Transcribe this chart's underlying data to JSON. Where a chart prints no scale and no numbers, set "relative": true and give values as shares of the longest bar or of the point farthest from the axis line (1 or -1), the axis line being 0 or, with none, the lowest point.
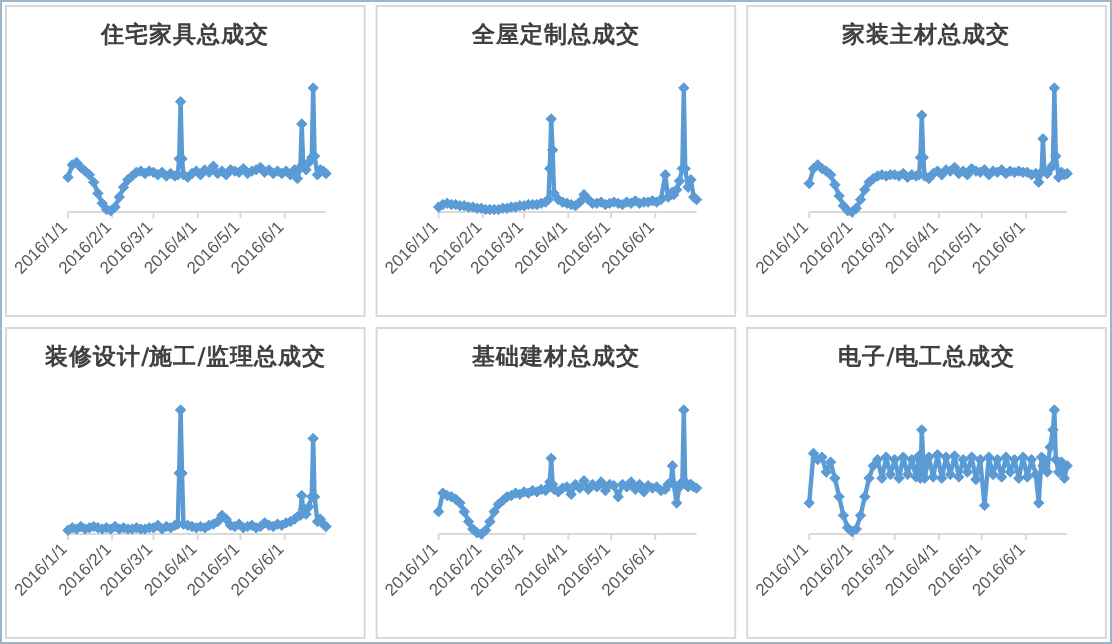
{
  "chart_data": [
    {
      "type": "line",
      "title": "住宅家具总成交",
      "color": "#5b9bd5",
      "marker": "diamond",
      "relative": true,
      "tick_labels": "x",
      "xlim": [
        "2016-01-01",
        "2016-06-30"
      ],
      "xticks": [
        {
          "value": "2016-01-01",
          "label": "2016/1/1"
        },
        {
          "value": "2016-02-01",
          "label": "2016/2/1"
        },
        {
          "value": "2016-03-01",
          "label": "2016/3/1"
        },
        {
          "value": "2016-04-01",
          "label": "2016/4/1"
        },
        {
          "value": "2016-05-01",
          "label": "2016/5/1"
        },
        {
          "value": "2016-06-01",
          "label": "2016/6/1"
        }
      ],
      "x": [
        "2016-01-01",
        "2016-01-04",
        "2016-01-07",
        "2016-01-10",
        "2016-01-13",
        "2016-01-16",
        "2016-01-19",
        "2016-01-22",
        "2016-01-25",
        "2016-01-28",
        "2016-01-31",
        "2016-02-03",
        "2016-02-06",
        "2016-02-09",
        "2016-02-12",
        "2016-02-15",
        "2016-02-18",
        "2016-02-21",
        "2016-02-24",
        "2016-02-27",
        "2016-03-01",
        "2016-03-04",
        "2016-03-07",
        "2016-03-10",
        "2016-03-13",
        "2016-03-16",
        "2016-03-18",
        "2016-03-19",
        "2016-03-20",
        "2016-03-21",
        "2016-03-22",
        "2016-03-25",
        "2016-03-28",
        "2016-03-31",
        "2016-04-03",
        "2016-04-06",
        "2016-04-09",
        "2016-04-12",
        "2016-04-15",
        "2016-04-18",
        "2016-04-21",
        "2016-04-24",
        "2016-04-27",
        "2016-04-30",
        "2016-05-03",
        "2016-05-06",
        "2016-05-09",
        "2016-05-12",
        "2016-05-15",
        "2016-05-18",
        "2016-05-21",
        "2016-05-24",
        "2016-05-27",
        "2016-05-30",
        "2016-06-02",
        "2016-06-05",
        "2016-06-08",
        "2016-06-10",
        "2016-06-12",
        "2016-06-13",
        "2016-06-14",
        "2016-06-16",
        "2016-06-18",
        "2016-06-20",
        "2016-06-21",
        "2016-06-22",
        "2016-06-24",
        "2016-06-26",
        "2016-06-28",
        "2016-06-30"
      ],
      "values": [
        0.28,
        0.38,
        0.4,
        0.36,
        0.33,
        0.3,
        0.24,
        0.15,
        0.07,
        0.02,
        0.01,
        0.04,
        0.12,
        0.2,
        0.26,
        0.29,
        0.32,
        0.33,
        0.31,
        0.33,
        0.32,
        0.3,
        0.32,
        0.29,
        0.31,
        0.29,
        0.3,
        0.43,
        0.89,
        0.43,
        0.3,
        0.28,
        0.31,
        0.33,
        0.3,
        0.34,
        0.32,
        0.37,
        0.31,
        0.33,
        0.3,
        0.34,
        0.33,
        0.32,
        0.35,
        0.31,
        0.33,
        0.34,
        0.36,
        0.32,
        0.34,
        0.31,
        0.33,
        0.31,
        0.33,
        0.3,
        0.34,
        0.27,
        0.36,
        0.71,
        0.38,
        0.34,
        0.4,
        0.44,
        1,
        0.45,
        0.3,
        0.34,
        0.33,
        0.31
      ]
    },
    {
      "type": "line",
      "title": "全屋定制总成交",
      "color": "#5b9bd5",
      "marker": "diamond",
      "relative": true,
      "tick_labels": "x",
      "xlim": [
        "2016-01-01",
        "2016-06-30"
      ],
      "xticks": [
        {
          "value": "2016-01-01",
          "label": "2016/1/1"
        },
        {
          "value": "2016-02-01",
          "label": "2016/2/1"
        },
        {
          "value": "2016-03-01",
          "label": "2016/3/1"
        },
        {
          "value": "2016-04-01",
          "label": "2016/4/1"
        },
        {
          "value": "2016-05-01",
          "label": "2016/5/1"
        },
        {
          "value": "2016-06-01",
          "label": "2016/6/1"
        }
      ],
      "x": [
        "2016-01-01",
        "2016-01-04",
        "2016-01-07",
        "2016-01-10",
        "2016-01-13",
        "2016-01-16",
        "2016-01-19",
        "2016-01-22",
        "2016-01-25",
        "2016-01-28",
        "2016-01-31",
        "2016-02-03",
        "2016-02-06",
        "2016-02-09",
        "2016-02-12",
        "2016-02-15",
        "2016-02-18",
        "2016-02-21",
        "2016-02-24",
        "2016-02-27",
        "2016-03-01",
        "2016-03-04",
        "2016-03-07",
        "2016-03-10",
        "2016-03-13",
        "2016-03-16",
        "2016-03-18",
        "2016-03-19",
        "2016-03-20",
        "2016-03-21",
        "2016-03-22",
        "2016-03-25",
        "2016-03-28",
        "2016-03-31",
        "2016-04-03",
        "2016-04-06",
        "2016-04-09",
        "2016-04-12",
        "2016-04-15",
        "2016-04-18",
        "2016-04-21",
        "2016-04-24",
        "2016-04-27",
        "2016-04-30",
        "2016-05-03",
        "2016-05-06",
        "2016-05-09",
        "2016-05-12",
        "2016-05-15",
        "2016-05-18",
        "2016-05-21",
        "2016-05-24",
        "2016-05-27",
        "2016-05-30",
        "2016-06-02",
        "2016-06-05",
        "2016-06-08",
        "2016-06-10",
        "2016-06-12",
        "2016-06-13",
        "2016-06-14",
        "2016-06-16",
        "2016-06-18",
        "2016-06-20",
        "2016-06-21",
        "2016-06-22",
        "2016-06-24",
        "2016-06-26",
        "2016-06-28",
        "2016-06-30"
      ],
      "values": [
        0.04,
        0.06,
        0.07,
        0.06,
        0.06,
        0.05,
        0.05,
        0.04,
        0.04,
        0.03,
        0.03,
        0.02,
        0.02,
        0.02,
        0.02,
        0.03,
        0.03,
        0.04,
        0.04,
        0.05,
        0.05,
        0.06,
        0.06,
        0.06,
        0.07,
        0.08,
        0.1,
        0.35,
        0.75,
        0.5,
        0.15,
        0.1,
        0.08,
        0.07,
        0.06,
        0.05,
        0.08,
        0.14,
        0.1,
        0.07,
        0.07,
        0.08,
        0.06,
        0.07,
        0.08,
        0.07,
        0.06,
        0.08,
        0.07,
        0.09,
        0.07,
        0.08,
        0.08,
        0.09,
        0.08,
        0.1,
        0.3,
        0.12,
        0.14,
        0.16,
        0.14,
        0.18,
        0.25,
        0.35,
        1,
        0.35,
        0.2,
        0.26,
        0.12,
        0.1
      ]
    },
    {
      "type": "line",
      "title": "家装主材总成交",
      "color": "#5b9bd5",
      "marker": "diamond",
      "relative": true,
      "tick_labels": "x",
      "xlim": [
        "2016-01-01",
        "2016-06-30"
      ],
      "xticks": [
        {
          "value": "2016-01-01",
          "label": "2016/1/1"
        },
        {
          "value": "2016-02-01",
          "label": "2016/2/1"
        },
        {
          "value": "2016-03-01",
          "label": "2016/3/1"
        },
        {
          "value": "2016-04-01",
          "label": "2016/4/1"
        },
        {
          "value": "2016-05-01",
          "label": "2016/5/1"
        },
        {
          "value": "2016-06-01",
          "label": "2016/6/1"
        }
      ],
      "x": [
        "2016-01-01",
        "2016-01-04",
        "2016-01-07",
        "2016-01-10",
        "2016-01-13",
        "2016-01-16",
        "2016-01-19",
        "2016-01-22",
        "2016-01-25",
        "2016-01-28",
        "2016-01-31",
        "2016-02-03",
        "2016-02-06",
        "2016-02-09",
        "2016-02-12",
        "2016-02-15",
        "2016-02-18",
        "2016-02-21",
        "2016-02-24",
        "2016-02-27",
        "2016-03-01",
        "2016-03-04",
        "2016-03-07",
        "2016-03-10",
        "2016-03-13",
        "2016-03-16",
        "2016-03-18",
        "2016-03-19",
        "2016-03-20",
        "2016-03-21",
        "2016-03-22",
        "2016-03-25",
        "2016-03-28",
        "2016-03-31",
        "2016-04-03",
        "2016-04-06",
        "2016-04-09",
        "2016-04-12",
        "2016-04-15",
        "2016-04-18",
        "2016-04-21",
        "2016-04-24",
        "2016-04-27",
        "2016-04-30",
        "2016-05-03",
        "2016-05-06",
        "2016-05-09",
        "2016-05-12",
        "2016-05-15",
        "2016-05-18",
        "2016-05-21",
        "2016-05-24",
        "2016-05-27",
        "2016-05-30",
        "2016-06-02",
        "2016-06-05",
        "2016-06-08",
        "2016-06-10",
        "2016-06-12",
        "2016-06-13",
        "2016-06-14",
        "2016-06-16",
        "2016-06-18",
        "2016-06-20",
        "2016-06-21",
        "2016-06-22",
        "2016-06-24",
        "2016-06-26",
        "2016-06-28",
        "2016-06-30"
      ],
      "values": [
        0.23,
        0.35,
        0.38,
        0.35,
        0.33,
        0.3,
        0.22,
        0.13,
        0.05,
        0.01,
        0,
        0.03,
        0.1,
        0.18,
        0.24,
        0.27,
        0.29,
        0.3,
        0.29,
        0.3,
        0.3,
        0.29,
        0.31,
        0.28,
        0.3,
        0.29,
        0.3,
        0.44,
        0.78,
        0.44,
        0.29,
        0.27,
        0.31,
        0.33,
        0.3,
        0.34,
        0.33,
        0.36,
        0.31,
        0.33,
        0.3,
        0.35,
        0.33,
        0.32,
        0.34,
        0.3,
        0.33,
        0.32,
        0.34,
        0.31,
        0.33,
        0.32,
        0.33,
        0.32,
        0.32,
        0.3,
        0.31,
        0.24,
        0.32,
        0.59,
        0.33,
        0.31,
        0.35,
        0.38,
        1,
        0.45,
        0.28,
        0.32,
        0.3,
        0.31
      ]
    },
    {
      "type": "line",
      "title": "装修设计/施工/监理总成交",
      "color": "#5b9bd5",
      "marker": "diamond",
      "relative": true,
      "tick_labels": "x",
      "xlim": [
        "2016-01-01",
        "2016-06-30"
      ],
      "xticks": [
        {
          "value": "2016-01-01",
          "label": "2016/1/1"
        },
        {
          "value": "2016-02-01",
          "label": "2016/2/1"
        },
        {
          "value": "2016-03-01",
          "label": "2016/3/1"
        },
        {
          "value": "2016-04-01",
          "label": "2016/4/1"
        },
        {
          "value": "2016-05-01",
          "label": "2016/5/1"
        },
        {
          "value": "2016-06-01",
          "label": "2016/6/1"
        }
      ],
      "x": [
        "2016-01-01",
        "2016-01-04",
        "2016-01-07",
        "2016-01-10",
        "2016-01-13",
        "2016-01-16",
        "2016-01-19",
        "2016-01-22",
        "2016-01-25",
        "2016-01-28",
        "2016-01-31",
        "2016-02-03",
        "2016-02-06",
        "2016-02-09",
        "2016-02-12",
        "2016-02-15",
        "2016-02-18",
        "2016-02-21",
        "2016-02-24",
        "2016-02-27",
        "2016-03-01",
        "2016-03-04",
        "2016-03-07",
        "2016-03-10",
        "2016-03-13",
        "2016-03-16",
        "2016-03-18",
        "2016-03-19",
        "2016-03-20",
        "2016-03-21",
        "2016-03-22",
        "2016-03-25",
        "2016-03-28",
        "2016-03-31",
        "2016-04-03",
        "2016-04-06",
        "2016-04-09",
        "2016-04-12",
        "2016-04-15",
        "2016-04-18",
        "2016-04-21",
        "2016-04-24",
        "2016-04-27",
        "2016-04-30",
        "2016-05-03",
        "2016-05-06",
        "2016-05-09",
        "2016-05-12",
        "2016-05-15",
        "2016-05-18",
        "2016-05-21",
        "2016-05-24",
        "2016-05-27",
        "2016-05-30",
        "2016-06-02",
        "2016-06-05",
        "2016-06-08",
        "2016-06-10",
        "2016-06-12",
        "2016-06-13",
        "2016-06-14",
        "2016-06-16",
        "2016-06-18",
        "2016-06-20",
        "2016-06-21",
        "2016-06-22",
        "2016-06-24",
        "2016-06-26",
        "2016-06-28",
        "2016-06-30"
      ],
      "values": [
        0.03,
        0.05,
        0.04,
        0.06,
        0.04,
        0.05,
        0.06,
        0.05,
        0.04,
        0.05,
        0.04,
        0.06,
        0.04,
        0.05,
        0.04,
        0.04,
        0.05,
        0.04,
        0.04,
        0.05,
        0.05,
        0.07,
        0.04,
        0.06,
        0.05,
        0.07,
        0.08,
        0.49,
        1,
        0.49,
        0.08,
        0.07,
        0.06,
        0.05,
        0.06,
        0.05,
        0.07,
        0.08,
        0.1,
        0.15,
        0.12,
        0.07,
        0.06,
        0.08,
        0.05,
        0.06,
        0.07,
        0.05,
        0.06,
        0.09,
        0.07,
        0.06,
        0.08,
        0.07,
        0.09,
        0.1,
        0.12,
        0.14,
        0.15,
        0.31,
        0.2,
        0.16,
        0.22,
        0.3,
        0.77,
        0.3,
        0.1,
        0.12,
        0.08,
        0.06
      ]
    },
    {
      "type": "line",
      "title": "基础建材总成交",
      "color": "#5b9bd5",
      "marker": "diamond",
      "relative": true,
      "tick_labels": "x",
      "xlim": [
        "2016-01-01",
        "2016-06-30"
      ],
      "xticks": [
        {
          "value": "2016-01-01",
          "label": "2016/1/1"
        },
        {
          "value": "2016-02-01",
          "label": "2016/2/1"
        },
        {
          "value": "2016-03-01",
          "label": "2016/3/1"
        },
        {
          "value": "2016-04-01",
          "label": "2016/4/1"
        },
        {
          "value": "2016-05-01",
          "label": "2016/5/1"
        },
        {
          "value": "2016-06-01",
          "label": "2016/6/1"
        }
      ],
      "x": [
        "2016-01-01",
        "2016-01-04",
        "2016-01-07",
        "2016-01-10",
        "2016-01-13",
        "2016-01-16",
        "2016-01-19",
        "2016-01-22",
        "2016-01-25",
        "2016-01-28",
        "2016-01-31",
        "2016-02-03",
        "2016-02-06",
        "2016-02-09",
        "2016-02-12",
        "2016-02-15",
        "2016-02-18",
        "2016-02-21",
        "2016-02-24",
        "2016-02-27",
        "2016-03-01",
        "2016-03-04",
        "2016-03-07",
        "2016-03-10",
        "2016-03-13",
        "2016-03-16",
        "2016-03-18",
        "2016-03-19",
        "2016-03-20",
        "2016-03-21",
        "2016-03-22",
        "2016-03-25",
        "2016-03-28",
        "2016-03-31",
        "2016-04-03",
        "2016-04-06",
        "2016-04-09",
        "2016-04-12",
        "2016-04-15",
        "2016-04-18",
        "2016-04-21",
        "2016-04-24",
        "2016-04-27",
        "2016-04-30",
        "2016-05-03",
        "2016-05-06",
        "2016-05-09",
        "2016-05-12",
        "2016-05-15",
        "2016-05-18",
        "2016-05-21",
        "2016-05-24",
        "2016-05-27",
        "2016-05-30",
        "2016-06-02",
        "2016-06-05",
        "2016-06-08",
        "2016-06-10",
        "2016-06-12",
        "2016-06-13",
        "2016-06-14",
        "2016-06-16",
        "2016-06-18",
        "2016-06-20",
        "2016-06-21",
        "2016-06-22",
        "2016-06-24",
        "2016-06-26",
        "2016-06-28",
        "2016-06-30"
      ],
      "values": [
        0.18,
        0.33,
        0.31,
        0.3,
        0.28,
        0.25,
        0.18,
        0.1,
        0.04,
        0.01,
        0,
        0.03,
        0.1,
        0.18,
        0.24,
        0.27,
        0.3,
        0.31,
        0.33,
        0.32,
        0.34,
        0.33,
        0.35,
        0.34,
        0.36,
        0.35,
        0.38,
        0.42,
        0.61,
        0.4,
        0.36,
        0.34,
        0.37,
        0.38,
        0.32,
        0.4,
        0.37,
        0.43,
        0.36,
        0.4,
        0.38,
        0.42,
        0.35,
        0.4,
        0.39,
        0.3,
        0.4,
        0.38,
        0.42,
        0.36,
        0.4,
        0.34,
        0.39,
        0.37,
        0.38,
        0.35,
        0.36,
        0.4,
        0.42,
        0.55,
        0.4,
        0.25,
        0.38,
        0.42,
        1,
        0.42,
        0.38,
        0.4,
        0.38,
        0.37
      ]
    },
    {
      "type": "line",
      "title": "电子/电工总成交",
      "color": "#5b9bd5",
      "marker": "diamond",
      "relative": true,
      "tick_labels": "x",
      "xlim": [
        "2016-01-01",
        "2016-06-30"
      ],
      "xticks": [
        {
          "value": "2016-01-01",
          "label": "2016/1/1"
        },
        {
          "value": "2016-02-01",
          "label": "2016/2/1"
        },
        {
          "value": "2016-03-01",
          "label": "2016/3/1"
        },
        {
          "value": "2016-04-01",
          "label": "2016/4/1"
        },
        {
          "value": "2016-05-01",
          "label": "2016/5/1"
        },
        {
          "value": "2016-06-01",
          "label": "2016/6/1"
        }
      ],
      "x": [
        "2016-01-01",
        "2016-01-04",
        "2016-01-07",
        "2016-01-10",
        "2016-01-13",
        "2016-01-16",
        "2016-01-19",
        "2016-01-22",
        "2016-01-25",
        "2016-01-28",
        "2016-01-31",
        "2016-02-03",
        "2016-02-06",
        "2016-02-09",
        "2016-02-12",
        "2016-02-15",
        "2016-02-18",
        "2016-02-21",
        "2016-02-24",
        "2016-02-27",
        "2016-03-01",
        "2016-03-04",
        "2016-03-07",
        "2016-03-10",
        "2016-03-13",
        "2016-03-16",
        "2016-03-18",
        "2016-03-19",
        "2016-03-20",
        "2016-03-21",
        "2016-03-22",
        "2016-03-25",
        "2016-03-28",
        "2016-03-31",
        "2016-04-03",
        "2016-04-06",
        "2016-04-09",
        "2016-04-12",
        "2016-04-15",
        "2016-04-18",
        "2016-04-21",
        "2016-04-24",
        "2016-04-27",
        "2016-04-30",
        "2016-05-03",
        "2016-05-06",
        "2016-05-09",
        "2016-05-12",
        "2016-05-15",
        "2016-05-18",
        "2016-05-21",
        "2016-05-24",
        "2016-05-27",
        "2016-05-30",
        "2016-06-02",
        "2016-06-05",
        "2016-06-08",
        "2016-06-10",
        "2016-06-12",
        "2016-06-13",
        "2016-06-14",
        "2016-06-16",
        "2016-06-18",
        "2016-06-20",
        "2016-06-21",
        "2016-06-22",
        "2016-06-24",
        "2016-06-26",
        "2016-06-28",
        "2016-06-30"
      ],
      "values": [
        0.25,
        0.65,
        0.6,
        0.62,
        0.5,
        0.58,
        0.45,
        0.3,
        0.15,
        0.05,
        0.02,
        0.04,
        0.15,
        0.3,
        0.45,
        0.55,
        0.6,
        0.45,
        0.62,
        0.48,
        0.6,
        0.45,
        0.62,
        0.48,
        0.6,
        0.46,
        0.63,
        0.45,
        0.84,
        0.6,
        0.45,
        0.62,
        0.46,
        0.64,
        0.45,
        0.62,
        0.48,
        0.63,
        0.46,
        0.6,
        0.5,
        0.62,
        0.44,
        0.6,
        0.23,
        0.62,
        0.48,
        0.6,
        0.46,
        0.62,
        0.5,
        0.6,
        0.45,
        0.62,
        0.46,
        0.6,
        0.48,
        0.25,
        0.62,
        0.55,
        0.6,
        0.5,
        0.7,
        0.84,
        1,
        0.6,
        0.5,
        0.58,
        0.45,
        0.55
      ]
    }
  ]
}
